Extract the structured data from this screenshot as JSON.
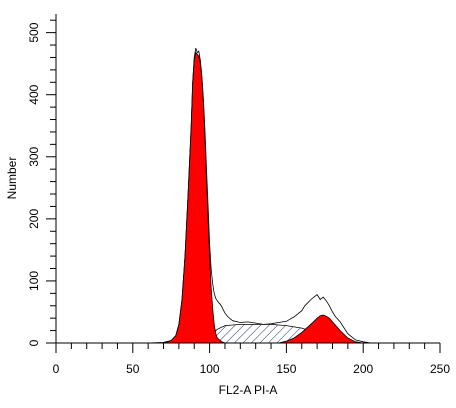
{
  "chart_data": {
    "type": "area",
    "xlabel": "FL2-A PI-A",
    "ylabel": "Number",
    "xlim": [
      0,
      250
    ],
    "ylim": [
      0,
      530
    ],
    "x_ticks": [
      0,
      50,
      100,
      150,
      200,
      250
    ],
    "y_ticks": [
      0,
      100,
      200,
      300,
      400,
      500
    ],
    "colors": {
      "g1_peak": "#ff0000",
      "g2_peak": "#ff0000",
      "s_phase": "#1f2a7a",
      "histogram": "#000000"
    },
    "series": [
      {
        "role": "measured histogram",
        "x": [
          60,
          70,
          75,
          78,
          80,
          82,
          84,
          86,
          88,
          89,
          90,
          91,
          92,
          93,
          94,
          95,
          96,
          97,
          98,
          99,
          100,
          101,
          102,
          103,
          104,
          105,
          106,
          107,
          108,
          110,
          112,
          115,
          120,
          125,
          130,
          135,
          140,
          145,
          150,
          155,
          160,
          162,
          164,
          166,
          168,
          170,
          172,
          174,
          176,
          178,
          180,
          182,
          185,
          190,
          195,
          200,
          205
        ],
        "y": [
          0,
          1,
          4,
          12,
          30,
          70,
          140,
          240,
          350,
          420,
          460,
          475,
          468,
          470,
          455,
          430,
          390,
          340,
          280,
          220,
          160,
          120,
          95,
          80,
          72,
          68,
          65,
          62,
          58,
          48,
          42,
          36,
          33,
          34,
          32,
          30,
          31,
          33,
          35,
          42,
          52,
          60,
          65,
          70,
          74,
          78,
          70,
          74,
          68,
          60,
          50,
          42,
          34,
          15,
          5,
          2,
          0
        ]
      },
      {
        "role": "G1 peak fit",
        "x": [
          70,
          75,
          78,
          80,
          82,
          84,
          86,
          88,
          89,
          90,
          91,
          92,
          93,
          94,
          95,
          96,
          97,
          98,
          99,
          100,
          101,
          102,
          103,
          104,
          105,
          108,
          110
        ],
        "y": [
          0,
          4,
          12,
          30,
          70,
          140,
          240,
          350,
          420,
          455,
          468,
          465,
          462,
          450,
          425,
          385,
          330,
          265,
          200,
          140,
          90,
          55,
          30,
          15,
          8,
          2,
          0
        ]
      },
      {
        "role": "S phase fit",
        "x": [
          80,
          90,
          100,
          105,
          110,
          120,
          130,
          140,
          150,
          160,
          165,
          170,
          175,
          180,
          185,
          190,
          195
        ],
        "y": [
          0,
          2,
          12,
          22,
          28,
          30,
          30,
          30,
          28,
          24,
          20,
          15,
          10,
          6,
          3,
          1,
          0
        ]
      },
      {
        "role": "G2 peak fit",
        "x": [
          145,
          150,
          155,
          160,
          165,
          168,
          170,
          172,
          174,
          176,
          178,
          180,
          185,
          190,
          195,
          200
        ],
        "y": [
          0,
          3,
          8,
          17,
          28,
          35,
          40,
          44,
          45,
          43,
          40,
          34,
          20,
          8,
          2,
          0
        ]
      }
    ]
  }
}
